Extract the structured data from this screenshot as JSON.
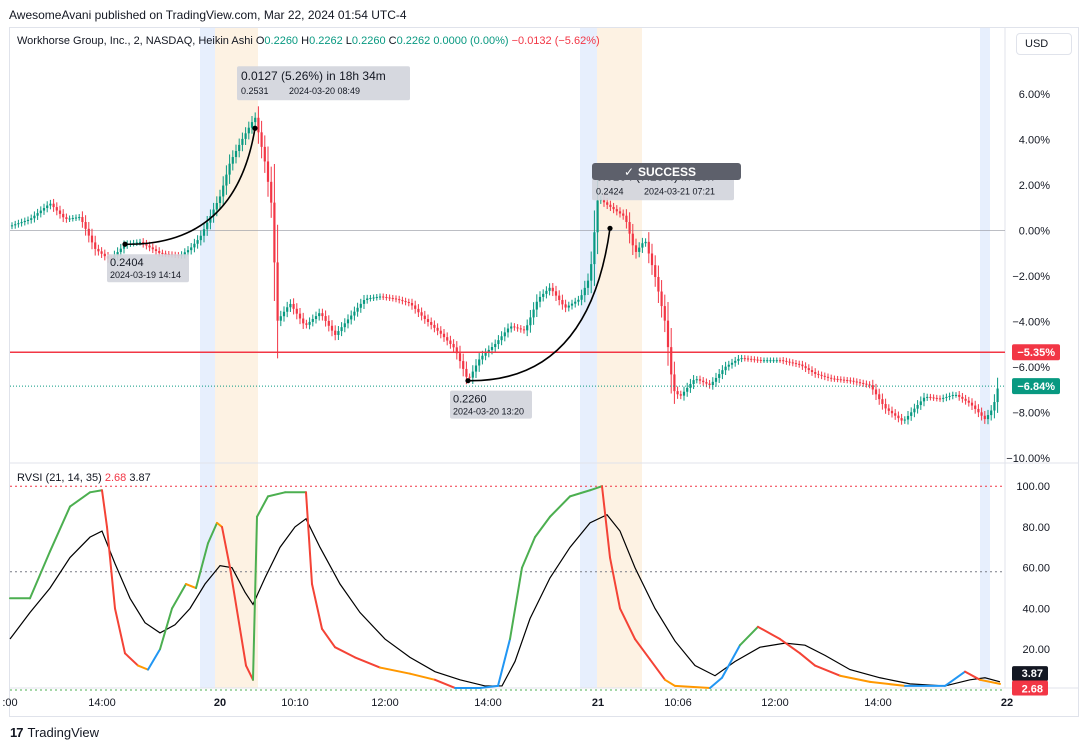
{
  "header": {
    "published": "AwesomeAvani published on TradingView.com, Mar 22, 2024 01:54 UTC-4"
  },
  "legend": {
    "symbol": "Workhorse Group, Inc., 2, NASDAQ, Heikin Ashi",
    "o_label": "O",
    "o": "0.2260",
    "h_label": "H",
    "h": "0.2262",
    "l_label": "L",
    "l": "0.2260",
    "c_label": "C",
    "c": "0.2262",
    "chg": "0.0000 (0.00%)",
    "chg2": "−0.0132 (−5.62%)"
  },
  "currency": "USD",
  "indicator": {
    "name": "RVSI (21, 14, 35)",
    "val1": "2.68",
    "val2": "3.87"
  },
  "footer": {
    "brand": "TradingView"
  },
  "colors": {
    "up": "#089981",
    "down": "#f23645",
    "rsi_green": "#4caf50",
    "rsi_red": "#f44336",
    "rsi_orange": "#ff9800",
    "rsi_blue": "#2196f3",
    "signal": "#000000",
    "session_blue": "#e3ecfd",
    "session_orange": "#fdf0de",
    "badge_green": "#089981",
    "badge_red": "#f23645"
  },
  "chart_data": [
    {
      "type": "candlestick",
      "title": "Workhorse Group, Inc., 2, NASDAQ, Heikin Ashi",
      "scale": "percent",
      "y_ticks": [
        "6.00%",
        "4.00%",
        "2.00%",
        "0.00%",
        "−2.00%",
        "−4.00%",
        "−6.00%",
        "−8.00%",
        "−10.00%"
      ],
      "ylim": [
        -10.0,
        7.5
      ],
      "x_ticks": [
        ":00",
        "14:00",
        "20",
        "10:10",
        "12:00",
        "14:00",
        "21",
        "10:06",
        "12:00",
        "14:00",
        "22"
      ],
      "price_pct_path": [
        {
          "t": 0,
          "v": 0.2
        },
        {
          "t": 20,
          "v": 0.5
        },
        {
          "t": 40,
          "v": 1.2
        },
        {
          "t": 55,
          "v": 0.5
        },
        {
          "t": 70,
          "v": 0.6
        },
        {
          "t": 85,
          "v": -0.8
        },
        {
          "t": 100,
          "v": -1.3
        },
        {
          "t": 115,
          "v": -0.6
        },
        {
          "t": 130,
          "v": -0.5
        },
        {
          "t": 150,
          "v": -1.0
        },
        {
          "t": 170,
          "v": -1.1
        },
        {
          "t": 180,
          "v": -0.8
        },
        {
          "t": 190,
          "v": -0.3
        },
        {
          "t": 200,
          "v": 0.6
        },
        {
          "t": 210,
          "v": 1.5
        },
        {
          "t": 220,
          "v": 3.0
        },
        {
          "t": 232,
          "v": 4.0
        },
        {
          "t": 245,
          "v": 5.0
        },
        {
          "t": 255,
          "v": 3.0
        },
        {
          "t": 262,
          "v": 1.0
        },
        {
          "t": 267,
          "v": -4.0
        },
        {
          "t": 280,
          "v": -3.2
        },
        {
          "t": 295,
          "v": -4.2
        },
        {
          "t": 310,
          "v": -3.6
        },
        {
          "t": 325,
          "v": -4.6
        },
        {
          "t": 340,
          "v": -3.8
        },
        {
          "t": 355,
          "v": -3.0
        },
        {
          "t": 370,
          "v": -2.9
        },
        {
          "t": 385,
          "v": -3.0
        },
        {
          "t": 400,
          "v": -3.2
        },
        {
          "t": 415,
          "v": -3.9
        },
        {
          "t": 430,
          "v": -4.5
        },
        {
          "t": 445,
          "v": -5.2
        },
        {
          "t": 458,
          "v": -6.6
        },
        {
          "t": 470,
          "v": -5.6
        },
        {
          "t": 485,
          "v": -5.0
        },
        {
          "t": 500,
          "v": -4.2
        },
        {
          "t": 515,
          "v": -4.4
        },
        {
          "t": 528,
          "v": -3.0
        },
        {
          "t": 540,
          "v": -2.5
        },
        {
          "t": 555,
          "v": -3.4
        },
        {
          "t": 570,
          "v": -3.0
        },
        {
          "t": 580,
          "v": -2.0
        },
        {
          "t": 588,
          "v": 1.5
        },
        {
          "t": 595,
          "v": 1.2
        },
        {
          "t": 605,
          "v": 0.9
        },
        {
          "t": 615,
          "v": 0.6
        },
        {
          "t": 625,
          "v": -1.0
        },
        {
          "t": 635,
          "v": -0.4
        },
        {
          "t": 645,
          "v": -2.0
        },
        {
          "t": 655,
          "v": -4.0
        },
        {
          "t": 663,
          "v": -7.0
        },
        {
          "t": 670,
          "v": -7.3
        },
        {
          "t": 685,
          "v": -6.5
        },
        {
          "t": 700,
          "v": -6.8
        },
        {
          "t": 715,
          "v": -6.0
        },
        {
          "t": 730,
          "v": -5.6
        },
        {
          "t": 750,
          "v": -5.7
        },
        {
          "t": 770,
          "v": -5.7
        },
        {
          "t": 790,
          "v": -5.9
        },
        {
          "t": 805,
          "v": -6.3
        },
        {
          "t": 820,
          "v": -6.5
        },
        {
          "t": 840,
          "v": -6.6
        },
        {
          "t": 860,
          "v": -6.8
        },
        {
          "t": 875,
          "v": -7.8
        },
        {
          "t": 893,
          "v": -8.4
        },
        {
          "t": 905,
          "v": -7.8
        },
        {
          "t": 915,
          "v": -7.3
        },
        {
          "t": 930,
          "v": -7.4
        },
        {
          "t": 945,
          "v": -7.2
        },
        {
          "t": 960,
          "v": -7.6
        },
        {
          "t": 975,
          "v": -8.3
        },
        {
          "t": 983,
          "v": -7.8
        },
        {
          "t": 990,
          "v": -6.5
        }
      ],
      "horizontal_lines": [
        {
          "value": -5.35,
          "label": "−5.35%",
          "color": "#f23645",
          "style": "solid"
        },
        {
          "value": -6.84,
          "label": "−6.84%",
          "color": "#089981",
          "style": "dotted"
        }
      ],
      "annotations": [
        {
          "type": "low",
          "price": "0.2404",
          "date": "2024-03-19 14:14",
          "t": 115,
          "v": -0.6
        },
        {
          "type": "low",
          "price": "0.2260",
          "date": "2024-03-20 13:20",
          "t": 458,
          "v": -6.6
        },
        {
          "type": "move",
          "text": "0.0127 (5.26%) in 18h 34m",
          "price": "0.2531",
          "date": "2024-03-20  08:49",
          "t": 245,
          "v": 4.5
        },
        {
          "type": "move",
          "text": "0.0164 (7.28%) in 18h",
          "price": "0.2424",
          "date": "2024-03-21  07:21",
          "t": 600,
          "v": 0.1
        },
        {
          "type": "badge",
          "text": "SUCCESS"
        }
      ]
    },
    {
      "type": "line",
      "title": "RVSI (21, 14, 35)",
      "y_ticks": [
        "100.00",
        "80.00",
        "60.00",
        "40.00",
        "20.00"
      ],
      "ylim": [
        0,
        105
      ],
      "levels": [
        100,
        58,
        0
      ],
      "last_values": {
        "rsi": "2.68",
        "signal": "3.87"
      },
      "series": [
        {
          "name": "RVSI",
          "points": [
            {
              "t": 0,
              "v": 45
            },
            {
              "t": 20,
              "v": 45
            },
            {
              "t": 40,
              "v": 68
            },
            {
              "t": 60,
              "v": 90
            },
            {
              "t": 80,
              "v": 97
            },
            {
              "t": 92,
              "v": 98
            },
            {
              "t": 97,
              "v": 80
            },
            {
              "t": 105,
              "v": 40
            },
            {
              "t": 115,
              "v": 18
            },
            {
              "t": 128,
              "v": 12
            },
            {
              "t": 138,
              "v": 10
            },
            {
              "t": 150,
              "v": 20
            },
            {
              "t": 162,
              "v": 40
            },
            {
              "t": 176,
              "v": 52
            },
            {
              "t": 186,
              "v": 50
            },
            {
              "t": 198,
              "v": 72
            },
            {
              "t": 207,
              "v": 82
            },
            {
              "t": 212,
              "v": 80
            },
            {
              "t": 220,
              "v": 60
            },
            {
              "t": 230,
              "v": 30
            },
            {
              "t": 236,
              "v": 12
            },
            {
              "t": 243,
              "v": 5
            },
            {
              "t": 247,
              "v": 85
            },
            {
              "t": 258,
              "v": 95
            },
            {
              "t": 275,
              "v": 97
            },
            {
              "t": 296,
              "v": 97
            },
            {
              "t": 302,
              "v": 52
            },
            {
              "t": 312,
              "v": 30
            },
            {
              "t": 325,
              "v": 21
            },
            {
              "t": 345,
              "v": 16
            },
            {
              "t": 370,
              "v": 11
            },
            {
              "t": 400,
              "v": 8
            },
            {
              "t": 425,
              "v": 5
            },
            {
              "t": 445,
              "v": 1
            },
            {
              "t": 470,
              "v": 1
            },
            {
              "t": 488,
              "v": 2
            },
            {
              "t": 500,
              "v": 25
            },
            {
              "t": 512,
              "v": 60
            },
            {
              "t": 525,
              "v": 75
            },
            {
              "t": 540,
              "v": 85
            },
            {
              "t": 560,
              "v": 95
            },
            {
              "t": 580,
              "v": 98
            },
            {
              "t": 592,
              "v": 100
            },
            {
              "t": 600,
              "v": 65
            },
            {
              "t": 610,
              "v": 40
            },
            {
              "t": 625,
              "v": 25
            },
            {
              "t": 640,
              "v": 15
            },
            {
              "t": 655,
              "v": 5
            },
            {
              "t": 665,
              "v": 2
            },
            {
              "t": 700,
              "v": 1
            },
            {
              "t": 712,
              "v": 6
            },
            {
              "t": 730,
              "v": 22
            },
            {
              "t": 748,
              "v": 31
            },
            {
              "t": 770,
              "v": 25
            },
            {
              "t": 790,
              "v": 18
            },
            {
              "t": 805,
              "v": 12
            },
            {
              "t": 830,
              "v": 7
            },
            {
              "t": 860,
              "v": 4
            },
            {
              "t": 895,
              "v": 2
            },
            {
              "t": 935,
              "v": 2
            },
            {
              "t": 955,
              "v": 9
            },
            {
              "t": 970,
              "v": 5
            },
            {
              "t": 990,
              "v": 3
            }
          ]
        },
        {
          "name": "Signal",
          "points": [
            {
              "t": 0,
              "v": 25
            },
            {
              "t": 20,
              "v": 38
            },
            {
              "t": 40,
              "v": 50
            },
            {
              "t": 60,
              "v": 65
            },
            {
              "t": 80,
              "v": 75
            },
            {
              "t": 92,
              "v": 78
            },
            {
              "t": 105,
              "v": 62
            },
            {
              "t": 120,
              "v": 45
            },
            {
              "t": 135,
              "v": 33
            },
            {
              "t": 150,
              "v": 28
            },
            {
              "t": 165,
              "v": 32
            },
            {
              "t": 180,
              "v": 40
            },
            {
              "t": 195,
              "v": 52
            },
            {
              "t": 210,
              "v": 61
            },
            {
              "t": 222,
              "v": 60
            },
            {
              "t": 235,
              "v": 48
            },
            {
              "t": 243,
              "v": 42
            },
            {
              "t": 255,
              "v": 55
            },
            {
              "t": 270,
              "v": 70
            },
            {
              "t": 285,
              "v": 80
            },
            {
              "t": 296,
              "v": 84
            },
            {
              "t": 310,
              "v": 70
            },
            {
              "t": 330,
              "v": 52
            },
            {
              "t": 350,
              "v": 38
            },
            {
              "t": 375,
              "v": 25
            },
            {
              "t": 400,
              "v": 16
            },
            {
              "t": 425,
              "v": 9
            },
            {
              "t": 450,
              "v": 5
            },
            {
              "t": 475,
              "v": 2
            },
            {
              "t": 492,
              "v": 2
            },
            {
              "t": 505,
              "v": 14
            },
            {
              "t": 520,
              "v": 35
            },
            {
              "t": 540,
              "v": 55
            },
            {
              "t": 560,
              "v": 70
            },
            {
              "t": 580,
              "v": 82
            },
            {
              "t": 597,
              "v": 86
            },
            {
              "t": 610,
              "v": 78
            },
            {
              "t": 625,
              "v": 60
            },
            {
              "t": 645,
              "v": 40
            },
            {
              "t": 665,
              "v": 24
            },
            {
              "t": 685,
              "v": 12
            },
            {
              "t": 705,
              "v": 7
            },
            {
              "t": 725,
              "v": 14
            },
            {
              "t": 750,
              "v": 21
            },
            {
              "t": 775,
              "v": 23
            },
            {
              "t": 795,
              "v": 22
            },
            {
              "t": 815,
              "v": 17
            },
            {
              "t": 840,
              "v": 10
            },
            {
              "t": 870,
              "v": 6
            },
            {
              "t": 900,
              "v": 3
            },
            {
              "t": 935,
              "v": 2
            },
            {
              "t": 960,
              "v": 5
            },
            {
              "t": 975,
              "v": 6
            },
            {
              "t": 990,
              "v": 4
            }
          ]
        }
      ]
    }
  ]
}
